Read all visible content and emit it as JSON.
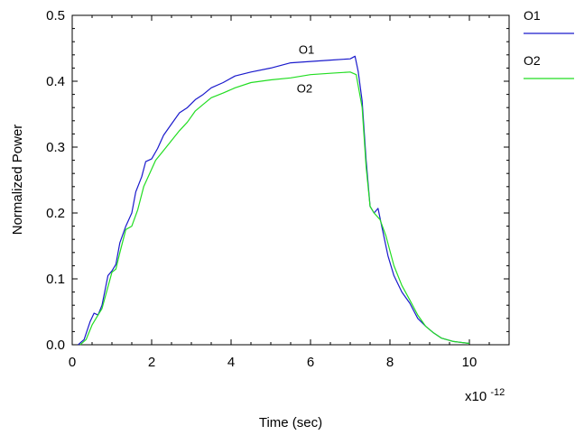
{
  "chart_data": {
    "type": "line",
    "xlabel": "Time (sec)",
    "ylabel": "Normalized Power",
    "x_multiplier_label": "x10",
    "x_multiplier_exponent": "-12",
    "xlim": [
      0,
      11
    ],
    "ylim": [
      0,
      0.5
    ],
    "x_ticks": [
      0,
      2,
      4,
      6,
      8,
      10
    ],
    "x_tick_labels": [
      "0",
      "2",
      "4",
      "6",
      "8",
      "10"
    ],
    "y_ticks": [
      0,
      0.1,
      0.2,
      0.3,
      0.4,
      0.5
    ],
    "y_tick_labels": [
      "0.0",
      "0.1",
      "0.2",
      "0.3",
      "0.4",
      "0.5"
    ],
    "grid": false,
    "legend_position": "right",
    "series": [
      {
        "name": "O1",
        "color": "#1a1acc",
        "points": [
          [
            0.15,
            0.0
          ],
          [
            0.3,
            0.008
          ],
          [
            0.45,
            0.035
          ],
          [
            0.55,
            0.048
          ],
          [
            0.65,
            0.045
          ],
          [
            0.75,
            0.06
          ],
          [
            0.9,
            0.105
          ],
          [
            1.0,
            0.112
          ],
          [
            1.1,
            0.122
          ],
          [
            1.2,
            0.155
          ],
          [
            1.35,
            0.18
          ],
          [
            1.5,
            0.2
          ],
          [
            1.6,
            0.232
          ],
          [
            1.75,
            0.255
          ],
          [
            1.85,
            0.278
          ],
          [
            2.0,
            0.282
          ],
          [
            2.15,
            0.298
          ],
          [
            2.3,
            0.318
          ],
          [
            2.5,
            0.335
          ],
          [
            2.7,
            0.352
          ],
          [
            2.9,
            0.36
          ],
          [
            3.1,
            0.372
          ],
          [
            3.3,
            0.38
          ],
          [
            3.5,
            0.39
          ],
          [
            3.8,
            0.398
          ],
          [
            4.1,
            0.408
          ],
          [
            4.5,
            0.414
          ],
          [
            5.0,
            0.42
          ],
          [
            5.5,
            0.428
          ],
          [
            6.0,
            0.43
          ],
          [
            6.5,
            0.432
          ],
          [
            7.0,
            0.434
          ],
          [
            7.12,
            0.438
          ],
          [
            7.2,
            0.415
          ],
          [
            7.3,
            0.37
          ],
          [
            7.4,
            0.28
          ],
          [
            7.5,
            0.21
          ],
          [
            7.6,
            0.2
          ],
          [
            7.7,
            0.207
          ],
          [
            7.8,
            0.178
          ],
          [
            7.95,
            0.135
          ],
          [
            8.1,
            0.105
          ],
          [
            8.3,
            0.08
          ],
          [
            8.5,
            0.063
          ],
          [
            8.7,
            0.04
          ],
          [
            8.9,
            0.028
          ],
          [
            9.1,
            0.018
          ],
          [
            9.3,
            0.01
          ],
          [
            9.6,
            0.005
          ],
          [
            10.0,
            0.002
          ]
        ]
      },
      {
        "name": "O2",
        "color": "#22dd22",
        "points": [
          [
            0.2,
            0.0
          ],
          [
            0.35,
            0.008
          ],
          [
            0.5,
            0.03
          ],
          [
            0.65,
            0.045
          ],
          [
            0.75,
            0.055
          ],
          [
            0.9,
            0.088
          ],
          [
            1.0,
            0.11
          ],
          [
            1.1,
            0.115
          ],
          [
            1.2,
            0.14
          ],
          [
            1.35,
            0.175
          ],
          [
            1.5,
            0.18
          ],
          [
            1.65,
            0.205
          ],
          [
            1.8,
            0.24
          ],
          [
            1.95,
            0.26
          ],
          [
            2.1,
            0.28
          ],
          [
            2.3,
            0.295
          ],
          [
            2.5,
            0.31
          ],
          [
            2.7,
            0.325
          ],
          [
            2.9,
            0.338
          ],
          [
            3.1,
            0.355
          ],
          [
            3.3,
            0.365
          ],
          [
            3.5,
            0.375
          ],
          [
            3.8,
            0.382
          ],
          [
            4.1,
            0.39
          ],
          [
            4.5,
            0.398
          ],
          [
            5.0,
            0.402
          ],
          [
            5.5,
            0.405
          ],
          [
            6.0,
            0.41
          ],
          [
            6.5,
            0.412
          ],
          [
            7.0,
            0.414
          ],
          [
            7.15,
            0.41
          ],
          [
            7.3,
            0.36
          ],
          [
            7.4,
            0.27
          ],
          [
            7.5,
            0.21
          ],
          [
            7.6,
            0.2
          ],
          [
            7.75,
            0.19
          ],
          [
            7.9,
            0.165
          ],
          [
            8.1,
            0.12
          ],
          [
            8.3,
            0.09
          ],
          [
            8.5,
            0.068
          ],
          [
            8.7,
            0.045
          ],
          [
            8.9,
            0.028
          ],
          [
            9.1,
            0.018
          ],
          [
            9.3,
            0.01
          ],
          [
            9.6,
            0.005
          ],
          [
            10.0,
            0.002
          ]
        ]
      }
    ],
    "annotations": [
      {
        "text": "O1",
        "x": 5.9,
        "y": 0.442
      },
      {
        "text": "O2",
        "x": 5.85,
        "y": 0.383
      }
    ]
  }
}
